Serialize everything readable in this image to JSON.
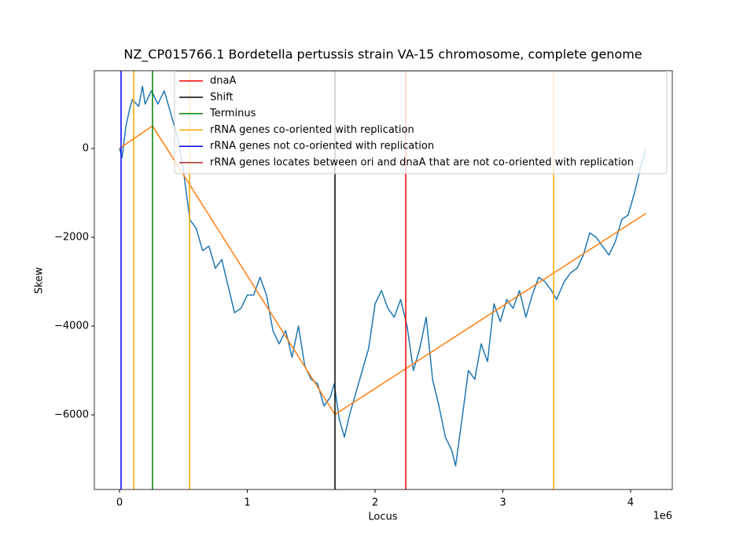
{
  "chart_data": {
    "type": "line",
    "title": "NZ_CP015766.1 Bordetella pertussis strain VA-15 chromosome, complete genome",
    "x_label": "Locus",
    "y_label": "Skew",
    "x_offset_label": "1e6",
    "xlim": [
      -197000,
      4326000
    ],
    "ylim": [
      -7681,
      1752
    ],
    "xticks": [
      0,
      {
        "value": 1000000,
        "label": "1"
      },
      {
        "value": 2000000,
        "label": "2"
      },
      {
        "value": 3000000,
        "label": "3"
      },
      {
        "value": 4000000,
        "label": "4"
      }
    ],
    "yticks": [
      {
        "value": -6000,
        "label": "−6000"
      },
      {
        "value": -4000,
        "label": "−4000"
      },
      {
        "value": -2000,
        "label": "−2000"
      },
      0
    ],
    "series": [
      {
        "color": "#1f77b4",
        "x": [
          0,
          20000,
          50000,
          80000,
          100000,
          150000,
          180000,
          200000,
          250000,
          300000,
          350000,
          400000,
          450000,
          500000,
          550000,
          600000,
          650000,
          700000,
          750000,
          800000,
          850000,
          900000,
          950000,
          1000000,
          1050000,
          1100000,
          1150000,
          1200000,
          1250000,
          1300000,
          1350000,
          1400000,
          1450000,
          1500000,
          1550000,
          1600000,
          1650000,
          1680000,
          1720000,
          1760000,
          1800000,
          1850000,
          1900000,
          1950000,
          2000000,
          2050000,
          2100000,
          2150000,
          2200000,
          2250000,
          2300000,
          2350000,
          2400000,
          2450000,
          2500000,
          2550000,
          2600000,
          2630000,
          2680000,
          2730000,
          2780000,
          2830000,
          2880000,
          2930000,
          2980000,
          3030000,
          3080000,
          3130000,
          3180000,
          3230000,
          3280000,
          3330000,
          3380000,
          3420000,
          3480000,
          3530000,
          3580000,
          3630000,
          3680000,
          3730000,
          3780000,
          3830000,
          3880000,
          3930000,
          3980000,
          4030000,
          4080000,
          4120000
        ],
        "values": [
          0,
          -200,
          500,
          900,
          1100,
          950,
          1400,
          1000,
          1300,
          1000,
          1300,
          800,
          300,
          -500,
          -1600,
          -1800,
          -2300,
          -2200,
          -2700,
          -2500,
          -3100,
          -3700,
          -3600,
          -3300,
          -3300,
          -2900,
          -3300,
          -4100,
          -4400,
          -4100,
          -4700,
          -4000,
          -4900,
          -5200,
          -5300,
          -5800,
          -5600,
          -5300,
          -6100,
          -6500,
          -6000,
          -5500,
          -5000,
          -4500,
          -3500,
          -3200,
          -3600,
          -3800,
          -3400,
          -4000,
          -5000,
          -4500,
          -3800,
          -5200,
          -5800,
          -6500,
          -6800,
          -7150,
          -6100,
          -5000,
          -5200,
          -4400,
          -4800,
          -3500,
          -3900,
          -3400,
          -3600,
          -3200,
          -3800,
          -3300,
          -2900,
          -3000,
          -3200,
          -3400,
          -3000,
          -2800,
          -2700,
          -2400,
          -1900,
          -2000,
          -2200,
          -2400,
          -2100,
          -1600,
          -1500,
          -1000,
          -400,
          0
        ]
      },
      {
        "color": "#ff7f0e",
        "x": [
          0,
          258000,
          1686000,
          4120000
        ],
        "values": [
          0,
          510,
          -5990,
          -1460
        ]
      }
    ],
    "markers": [
      {
        "name": "dnaA",
        "color": "#ff0000",
        "x": [
          2240000
        ]
      },
      {
        "name": "Shift",
        "color": "#000000",
        "x": [
          1686000
        ]
      },
      {
        "name": "Terminus",
        "color": "#008000",
        "x": [
          258000
        ]
      },
      {
        "name": "rRNA genes co-oriented with replication",
        "color": "#ffa500",
        "x": [
          111000,
          548000,
          3397000
        ]
      },
      {
        "name": "rRNA genes not co-oriented with replication",
        "color": "#0000ff",
        "x": [
          12000
        ]
      },
      {
        "name": "rRNA genes locates between ori and dnaA that are not co-oriented with replication",
        "color": "#a52a2a",
        "x": []
      }
    ]
  }
}
